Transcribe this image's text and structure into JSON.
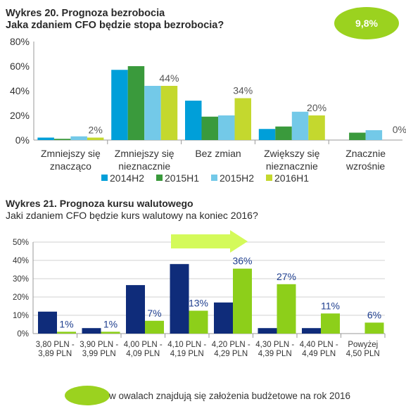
{
  "badge": "9,8%",
  "footer_note": "w owalach znajdują się założenia budżetowe na rok 2016",
  "colors": {
    "s2014H2": "#009fd9",
    "s2015H1": "#3a9a3c",
    "s2015H2": "#73c9e8",
    "s2016H1": "#c4d82e",
    "navy": "#0f2c7a",
    "green": "#8dcf1a",
    "arrow": "#d4fa5a"
  },
  "chart_data": [
    {
      "type": "bar",
      "title": "Wykres 20. Prognoza bezrobocia",
      "subtitle": "Jaka zdaniem CFO będzie stopa bezrobocia?",
      "categories": [
        [
          "Zmniejszy się",
          "znacząco"
        ],
        [
          "Zmniejszy się",
          "nieznacznie"
        ],
        [
          "Bez zmian"
        ],
        [
          "Zwiększy się",
          "nieznacznie"
        ],
        [
          "Znacznie",
          "wzrośnie"
        ]
      ],
      "ylim": [
        0,
        80
      ],
      "yticks": [
        "0%",
        "20%",
        "40%",
        "60%",
        "80%"
      ],
      "series": [
        {
          "name": "2014H2",
          "values": [
            2,
            57,
            32,
            9,
            0
          ]
        },
        {
          "name": "2015H1",
          "values": [
            1,
            60,
            19,
            11,
            6
          ]
        },
        {
          "name": "2015H2",
          "values": [
            3,
            44,
            20,
            23,
            8
          ]
        },
        {
          "name": "2016H1",
          "values": [
            2,
            44,
            34,
            20,
            0
          ]
        }
      ],
      "labels": [
        "2%",
        "44%",
        "34%",
        "20%",
        "0%"
      ],
      "legend": "bottom",
      "grid": false
    },
    {
      "type": "bar",
      "title": "Wykres 21. Prognoza kursu walutowego",
      "subtitle": "Jaki zdaniem CFO będzie kurs walutowy na koniec 2016?",
      "categories": [
        [
          "3,80 PLN -",
          "3,89 PLN"
        ],
        [
          "3,90 PLN -",
          "3,99 PLN"
        ],
        [
          "4,00 PLN -",
          "4,09 PLN"
        ],
        [
          "4,10 PLN -",
          "4,19 PLN"
        ],
        [
          "4,20 PLN -",
          "4,29 PLN"
        ],
        [
          "4,30 PLN -",
          "4,39 PLN"
        ],
        [
          "4,40 PLN -",
          "4,49 PLN"
        ],
        [
          "Powyżej",
          "4,50 PLN"
        ]
      ],
      "ylim": [
        0,
        50
      ],
      "yticks": [
        "0%",
        "10%",
        "20%",
        "30%",
        "40%",
        "50%"
      ],
      "series": [
        {
          "values": [
            12,
            3,
            26.5,
            38,
            17,
            3,
            3,
            0
          ]
        },
        {
          "values": [
            1,
            1,
            7,
            12.5,
            35.5,
            27,
            11,
            6
          ]
        }
      ],
      "labels": [
        "1%",
        "1%",
        "7%",
        "13%",
        "36%",
        "27%",
        "11%",
        "6%"
      ],
      "grid": true
    }
  ]
}
